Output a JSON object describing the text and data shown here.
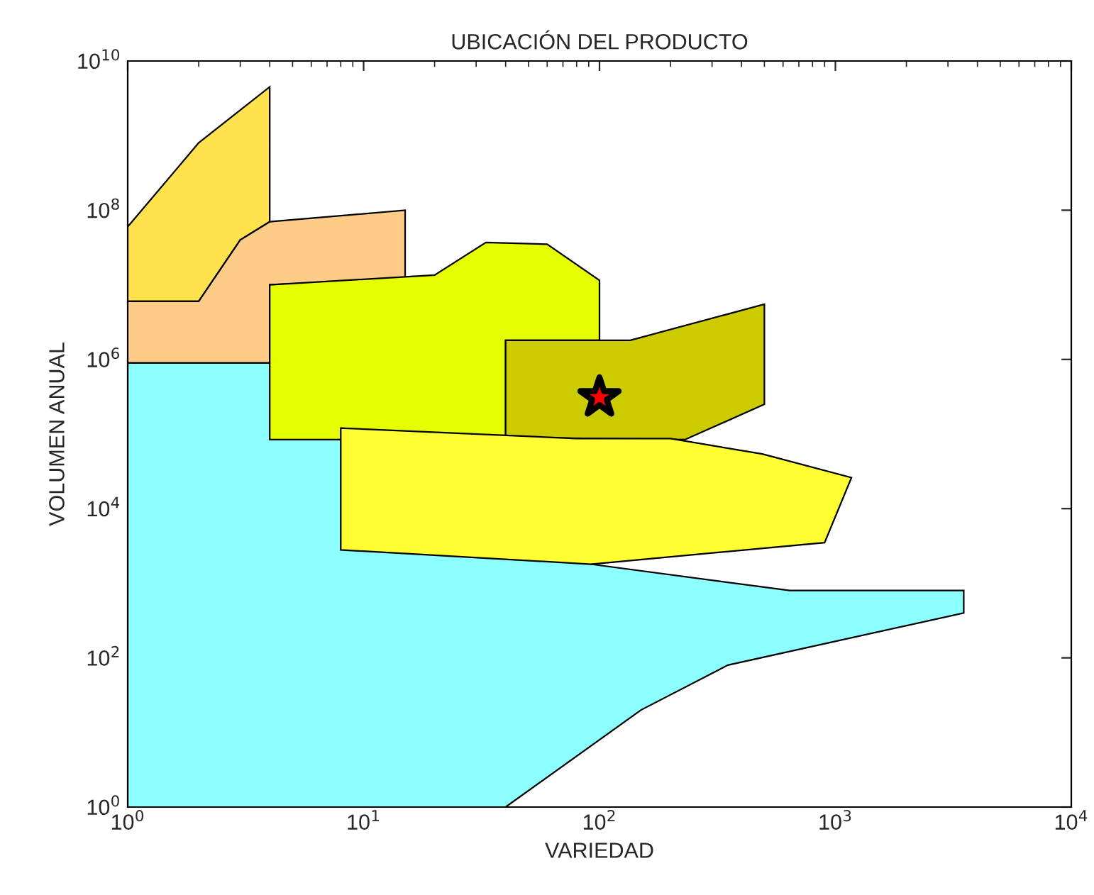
{
  "chart_data": {
    "type": "area",
    "title": "UBICACIÓN DEL PRODUCTO",
    "xlabel": "VARIEDAD",
    "ylabel": "VOLUMEN ANUAL",
    "log": "xy",
    "grid": false,
    "xlim": [
      1,
      10000
    ],
    "ylim": [
      1,
      10000000000
    ],
    "xticks": [
      {
        "value": 1,
        "label": "10$^{0}$"
      },
      {
        "value": 10,
        "label": "10$^{1}$"
      },
      {
        "value": 100,
        "label": "10$^{2}$"
      },
      {
        "value": 1000,
        "label": "10$^{3}$"
      },
      {
        "value": 10000,
        "label": "10$^{4}$"
      }
    ],
    "yticks": [
      {
        "value": 1,
        "label": "10$^{0}$"
      },
      {
        "value": 100,
        "label": "10$^{2}$"
      },
      {
        "value": 10000,
        "label": "10$^{4}$"
      },
      {
        "value": 1000000,
        "label": "10$^{6}$"
      },
      {
        "value": 100000000,
        "label": "10$^{8}$"
      },
      {
        "value": 10000000000,
        "label": "10$^{10}$"
      }
    ],
    "series": [
      {
        "color": "#8cffff",
        "x": [
          1,
          1,
          4,
          92,
          640,
          3500,
          3500,
          350,
          150,
          40
        ],
        "values": [
          1,
          900000,
          900000,
          1800,
          800,
          800,
          400,
          80,
          20,
          1
        ]
      },
      {
        "color": "#ffe24d",
        "x": [
          1,
          2,
          4,
          4,
          3,
          2,
          1
        ],
        "values": [
          60000000,
          800000000,
          4500000000,
          70000000,
          40000000,
          6000000,
          6000000
        ]
      },
      {
        "color": "#ffcc88",
        "x": [
          1,
          2,
          3,
          4,
          15,
          15,
          4,
          4,
          1
        ],
        "values": [
          6000000,
          6000000,
          40000000,
          70000000,
          100000000,
          12000000,
          10000000,
          900000,
          900000
        ]
      },
      {
        "color": "#e5ff00",
        "x": [
          4,
          20,
          33,
          60,
          100,
          100,
          40,
          40,
          8,
          4
        ],
        "values": [
          10000000,
          13500000,
          37000000,
          35000000,
          11500000,
          1800000,
          1800000,
          90000,
          84000,
          84000
        ]
      },
      {
        "color": "#cccc00",
        "x": [
          40,
          135,
          500,
          500,
          230,
          40
        ],
        "values": [
          1800000,
          1800000,
          5500000,
          250000,
          84000,
          90000
        ]
      },
      {
        "color": "#ffff33",
        "x": [
          8,
          80,
          200,
          490,
          1170,
          900,
          92,
          8
        ],
        "values": [
          120000,
          87000,
          87000,
          54000,
          26000,
          3500,
          1800,
          2800
        ]
      },
      {
        "type": "scatter",
        "color": "#ff0000",
        "marker": "star",
        "x": [
          100
        ],
        "values": [
          310000
        ]
      }
    ]
  }
}
